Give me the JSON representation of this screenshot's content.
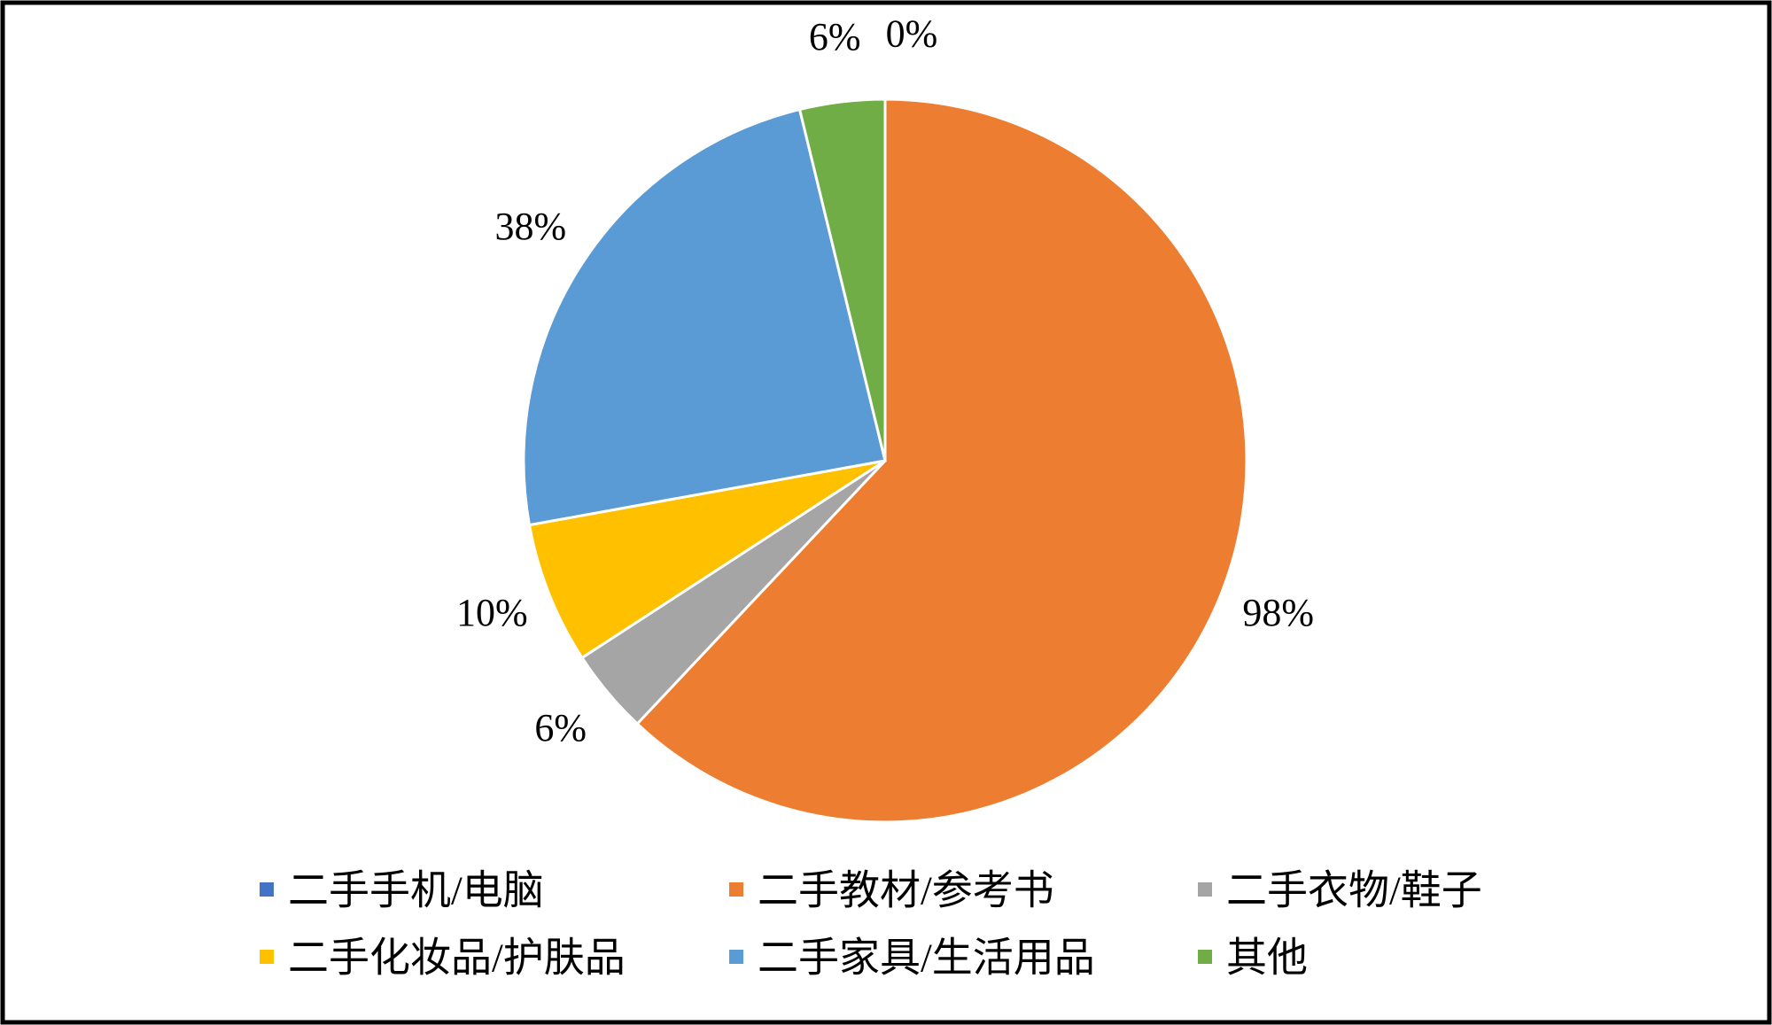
{
  "chart_data": {
    "type": "pie",
    "categories": [
      "二手手机/电脑",
      "二手教材/参考书",
      "二手衣物/鞋子",
      "二手化妆品/护肤品",
      "二手家具/生活用品",
      "其他"
    ],
    "values": [
      0,
      98,
      6,
      10,
      38,
      6
    ],
    "value_labels": [
      "0%",
      "98%",
      "6%",
      "10%",
      "38%",
      "6%"
    ],
    "colors": [
      "#4472c4",
      "#ed7d31",
      "#a5a5a5",
      "#ffc000",
      "#5b9bd5",
      "#70ad47"
    ],
    "legend": "bottom"
  }
}
